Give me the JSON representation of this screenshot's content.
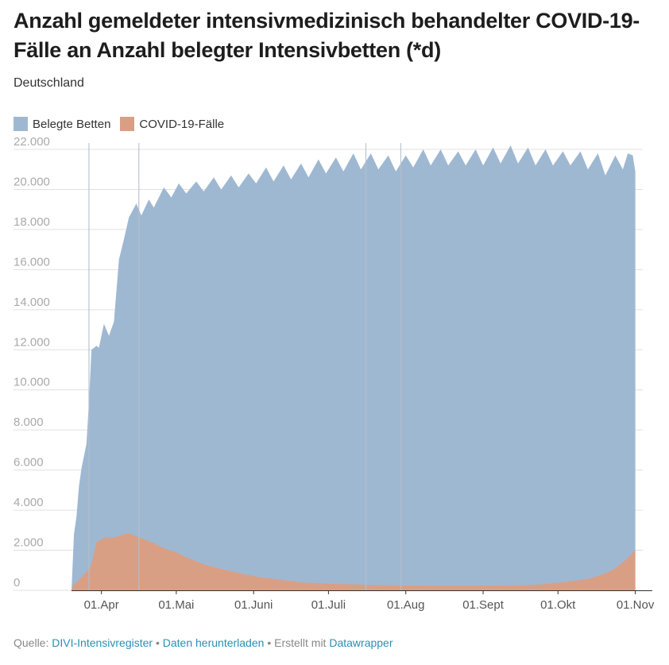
{
  "title": "Anzahl gemeldeter intensivmedizinisch behandelter COVID-19-Fälle an Anzahl belegter Intensivbetten (*d)",
  "subtitle": "Deutschland",
  "colors": {
    "belegte_betten": "#9fb8d2",
    "covid": "#d99f85",
    "grid": "#e0e0e0",
    "marker_line": "#b4bfcb"
  },
  "footer": {
    "source_prefix": "Quelle:",
    "source_link": "DIVI-Intensivregister",
    "sep1": "•",
    "download_link": "Daten herunterladen",
    "sep2": "• Erstellt mit",
    "tool_link": "Datawrapper"
  },
  "chart_data": {
    "type": "area",
    "x_unit": "Datum 2020",
    "y_ticks": [
      "0",
      "2.000",
      "4.000",
      "6.000",
      "8.000",
      "10.000",
      "12.000",
      "14.000",
      "16.000",
      "18.000",
      "20.000",
      "22.000"
    ],
    "ylim": [
      0,
      22000
    ],
    "x_ticks": [
      {
        "label": "01.Apr",
        "date": "2020-04-01"
      },
      {
        "label": "01.Mai",
        "date": "2020-05-01"
      },
      {
        "label": "01.Juni",
        "date": "2020-06-01"
      },
      {
        "label": "01.Juli",
        "date": "2020-07-01"
      },
      {
        "label": "01.Aug",
        "date": "2020-08-01"
      },
      {
        "label": "01.Sept",
        "date": "2020-09-01"
      },
      {
        "label": "01.Okt",
        "date": "2020-10-01"
      },
      {
        "label": "01.Nov",
        "date": "2020-11-01"
      }
    ],
    "xlim": [
      "2020-03-20",
      "2020-11-04"
    ],
    "marker_dates": [
      "2020-03-27",
      "2020-04-16",
      "2020-07-16",
      "2020-07-30"
    ],
    "grid": true,
    "legend_position": "top-left",
    "series": [
      {
        "name": "Belegte Betten",
        "points": [
          [
            "2020-03-20",
            0
          ],
          [
            "2020-03-21",
            2800
          ],
          [
            "2020-03-22",
            3700
          ],
          [
            "2020-03-23",
            5200
          ],
          [
            "2020-03-24",
            6100
          ],
          [
            "2020-03-25",
            6700
          ],
          [
            "2020-03-26",
            7300
          ],
          [
            "2020-03-27",
            9400
          ],
          [
            "2020-03-28",
            12000
          ],
          [
            "2020-03-29",
            12100
          ],
          [
            "2020-03-30",
            12200
          ],
          [
            "2020-03-31",
            12100
          ],
          [
            "2020-04-02",
            13300
          ],
          [
            "2020-04-04",
            12700
          ],
          [
            "2020-04-06",
            13400
          ],
          [
            "2020-04-08",
            16500
          ],
          [
            "2020-04-10",
            17500
          ],
          [
            "2020-04-12",
            18600
          ],
          [
            "2020-04-15",
            19300
          ],
          [
            "2020-04-17",
            18700
          ],
          [
            "2020-04-20",
            19500
          ],
          [
            "2020-04-22",
            19100
          ],
          [
            "2020-04-26",
            20100
          ],
          [
            "2020-04-29",
            19600
          ],
          [
            "2020-05-02",
            20300
          ],
          [
            "2020-05-05",
            19800
          ],
          [
            "2020-05-09",
            20400
          ],
          [
            "2020-05-12",
            19900
          ],
          [
            "2020-05-16",
            20600
          ],
          [
            "2020-05-19",
            20000
          ],
          [
            "2020-05-23",
            20700
          ],
          [
            "2020-05-26",
            20100
          ],
          [
            "2020-05-30",
            20800
          ],
          [
            "2020-06-02",
            20300
          ],
          [
            "2020-06-06",
            21100
          ],
          [
            "2020-06-09",
            20400
          ],
          [
            "2020-06-13",
            21200
          ],
          [
            "2020-06-16",
            20500
          ],
          [
            "2020-06-20",
            21300
          ],
          [
            "2020-06-23",
            20600
          ],
          [
            "2020-06-27",
            21500
          ],
          [
            "2020-06-30",
            20800
          ],
          [
            "2020-07-04",
            21600
          ],
          [
            "2020-07-07",
            20900
          ],
          [
            "2020-07-11",
            21800
          ],
          [
            "2020-07-14",
            21000
          ],
          [
            "2020-07-18",
            21800
          ],
          [
            "2020-07-21",
            21000
          ],
          [
            "2020-07-25",
            21700
          ],
          [
            "2020-07-28",
            20900
          ],
          [
            "2020-08-01",
            21700
          ],
          [
            "2020-08-04",
            21100
          ],
          [
            "2020-08-08",
            22000
          ],
          [
            "2020-08-11",
            21200
          ],
          [
            "2020-08-15",
            22000
          ],
          [
            "2020-08-18",
            21200
          ],
          [
            "2020-08-22",
            21900
          ],
          [
            "2020-08-25",
            21200
          ],
          [
            "2020-08-29",
            22000
          ],
          [
            "2020-09-01",
            21200
          ],
          [
            "2020-09-05",
            22100
          ],
          [
            "2020-09-08",
            21300
          ],
          [
            "2020-09-12",
            22200
          ],
          [
            "2020-09-15",
            21300
          ],
          [
            "2020-09-19",
            22100
          ],
          [
            "2020-09-22",
            21200
          ],
          [
            "2020-09-26",
            22000
          ],
          [
            "2020-09-29",
            21200
          ],
          [
            "2020-10-03",
            21900
          ],
          [
            "2020-10-06",
            21200
          ],
          [
            "2020-10-10",
            21900
          ],
          [
            "2020-10-13",
            21000
          ],
          [
            "2020-10-17",
            21800
          ],
          [
            "2020-10-20",
            20700
          ],
          [
            "2020-10-24",
            21700
          ],
          [
            "2020-10-27",
            21000
          ],
          [
            "2020-10-29",
            21800
          ],
          [
            "2020-10-31",
            21700
          ],
          [
            "2020-11-01",
            20900
          ]
        ]
      },
      {
        "name": "COVID-19-Fälle",
        "points": [
          [
            "2020-03-20",
            0
          ],
          [
            "2020-03-21",
            300
          ],
          [
            "2020-03-23",
            500
          ],
          [
            "2020-03-25",
            800
          ],
          [
            "2020-03-27",
            1050
          ],
          [
            "2020-03-28",
            1300
          ],
          [
            "2020-03-30",
            2400
          ],
          [
            "2020-04-01",
            2550
          ],
          [
            "2020-04-03",
            2650
          ],
          [
            "2020-04-05",
            2620
          ],
          [
            "2020-04-08",
            2700
          ],
          [
            "2020-04-10",
            2800
          ],
          [
            "2020-04-12",
            2850
          ],
          [
            "2020-04-15",
            2700
          ],
          [
            "2020-04-18",
            2550
          ],
          [
            "2020-04-22",
            2350
          ],
          [
            "2020-04-26",
            2100
          ],
          [
            "2020-05-01",
            1900
          ],
          [
            "2020-05-06",
            1600
          ],
          [
            "2020-05-12",
            1300
          ],
          [
            "2020-05-18",
            1100
          ],
          [
            "2020-05-25",
            900
          ],
          [
            "2020-06-01",
            700
          ],
          [
            "2020-06-10",
            550
          ],
          [
            "2020-06-20",
            400
          ],
          [
            "2020-07-01",
            330
          ],
          [
            "2020-07-15",
            280
          ],
          [
            "2020-08-01",
            240
          ],
          [
            "2020-08-15",
            230
          ],
          [
            "2020-09-01",
            230
          ],
          [
            "2020-09-15",
            250
          ],
          [
            "2020-09-25",
            300
          ],
          [
            "2020-10-01",
            380
          ],
          [
            "2020-10-08",
            480
          ],
          [
            "2020-10-14",
            600
          ],
          [
            "2020-10-20",
            850
          ],
          [
            "2020-10-24",
            1100
          ],
          [
            "2020-10-28",
            1500
          ],
          [
            "2020-11-01",
            2000
          ]
        ]
      }
    ]
  }
}
